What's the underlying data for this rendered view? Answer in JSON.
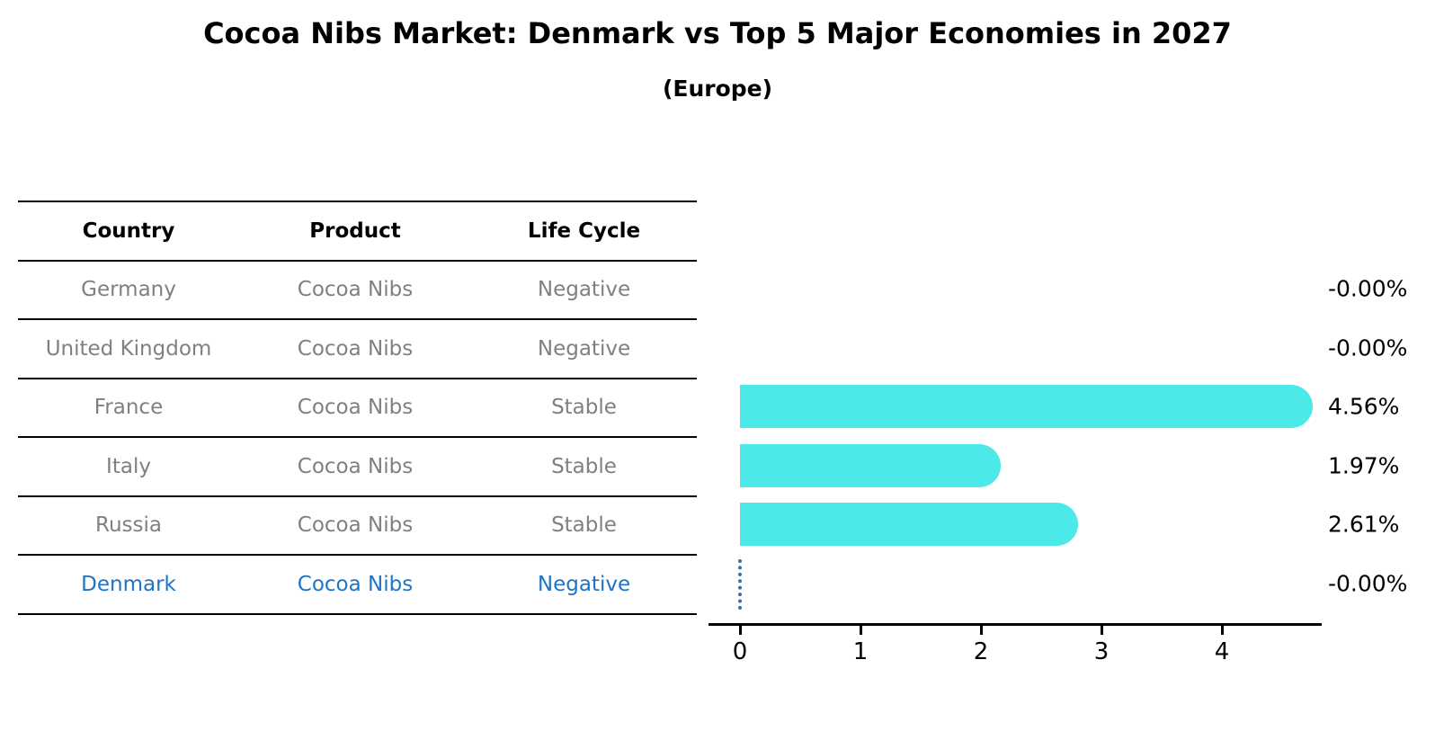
{
  "title": "Cocoa Nibs Market: Denmark vs Top 5 Major Economies in 2027",
  "subtitle": "(Europe)",
  "table": {
    "headers": [
      "Country",
      "Product",
      "Life Cycle"
    ],
    "rows": [
      {
        "country": "Germany",
        "product": "Cocoa Nibs",
        "life_cycle": "Negative",
        "highlight": false
      },
      {
        "country": "United Kingdom",
        "product": "Cocoa Nibs",
        "life_cycle": "Negative",
        "highlight": false
      },
      {
        "country": "France",
        "product": "Cocoa Nibs",
        "life_cycle": "Stable",
        "highlight": false
      },
      {
        "country": "Italy",
        "product": "Cocoa Nibs",
        "life_cycle": "Stable",
        "highlight": false
      },
      {
        "country": "Russia",
        "product": "Cocoa Nibs",
        "life_cycle": "Stable",
        "highlight": false
      },
      {
        "country": "Denmark",
        "product": "Cocoa Nibs",
        "life_cycle": "Negative",
        "highlight": true
      }
    ]
  },
  "chart_data": {
    "type": "bar",
    "orientation": "horizontal",
    "title": "Cocoa Nibs Market: Denmark vs Top 5 Major Economies in 2027",
    "subtitle": "(Europe)",
    "categories": [
      "Germany",
      "United Kingdom",
      "France",
      "Italy",
      "Russia",
      "Denmark"
    ],
    "values": [
      -0.0,
      -0.0,
      4.56,
      1.97,
      2.61,
      -0.0
    ],
    "display_values": [
      "-0.00%",
      "-0.00%",
      "4.56%",
      "1.97%",
      "2.61%",
      "-0.00%"
    ],
    "x_ticks": [
      "0",
      "1",
      "2",
      "3",
      "4"
    ],
    "xlim": [
      0,
      4.85
    ],
    "xlabel": "",
    "ylabel": "",
    "grid": false,
    "legend": false,
    "bar_color": "#4DE8E8",
    "highlight_text_color": "#1E74C8",
    "reference_line": {
      "category": "Denmark",
      "x": 0,
      "style": "dotted",
      "color": "#3A6EA5"
    }
  }
}
